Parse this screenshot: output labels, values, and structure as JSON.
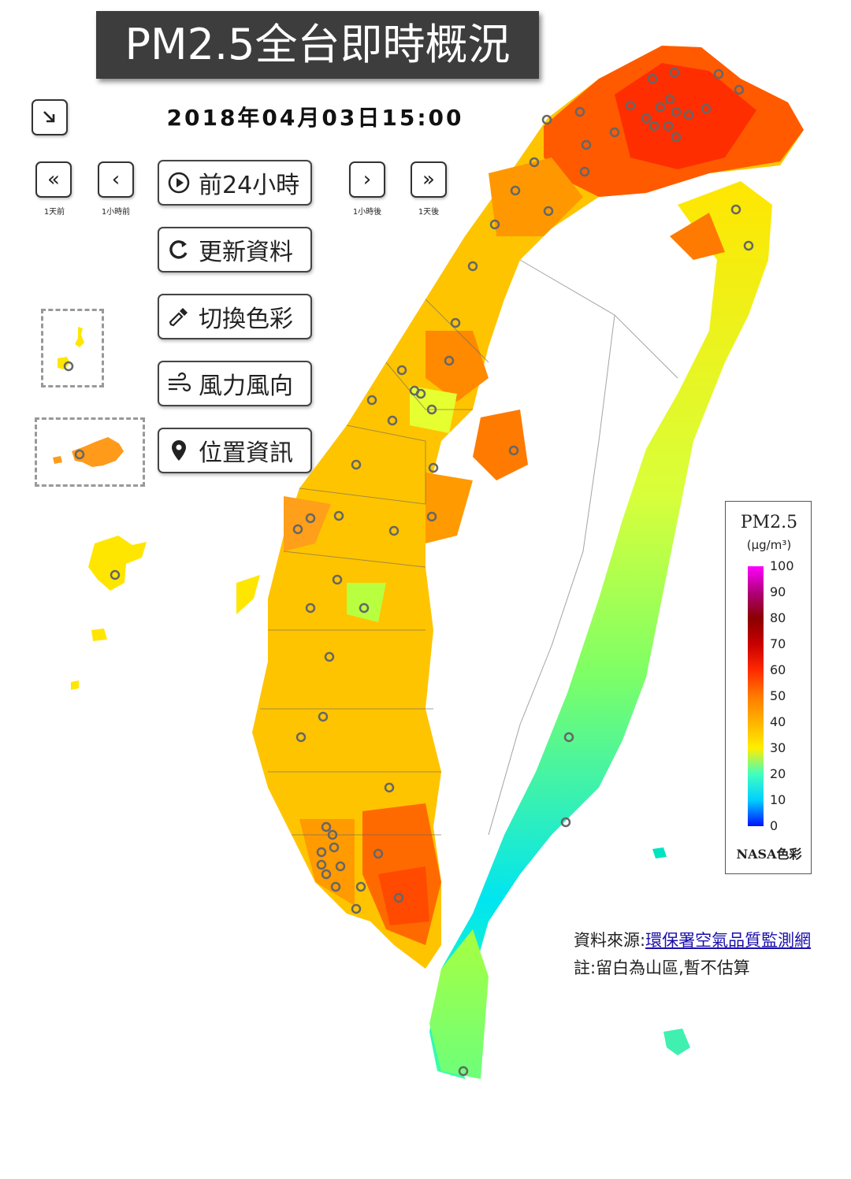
{
  "title": "PM2.5全台即時概況",
  "timestamp": "2018年04月03日15:00",
  "nav": {
    "day_back_caption": "1天前",
    "hour_back_caption": "1小時前",
    "hour_fwd_caption": "1小時後",
    "day_fwd_caption": "1天後"
  },
  "buttons": {
    "prev24": "前24小時",
    "refresh": "更新資料",
    "color": "切換色彩",
    "wind": "風力風向",
    "location": "位置資訊"
  },
  "legend": {
    "title": "PM2.5",
    "unit": "(μg/m³)",
    "ticks": [
      "100",
      "90",
      "80",
      "70",
      "60",
      "50",
      "40",
      "30",
      "20",
      "10",
      "0"
    ],
    "footer": "NASA色彩"
  },
  "source": {
    "label": "資料來源:",
    "link": "環保署空氣品質監測網",
    "note": "註:留白為山區,暫不估算"
  },
  "colors": {
    "title_bg": "#3d3d3d",
    "high": "#ff3a00",
    "orange": "#ff8c00",
    "mid": "#ffc400",
    "yellow": "#ffe600",
    "green": "#7dff66",
    "cyan": "#00e5f0"
  }
}
